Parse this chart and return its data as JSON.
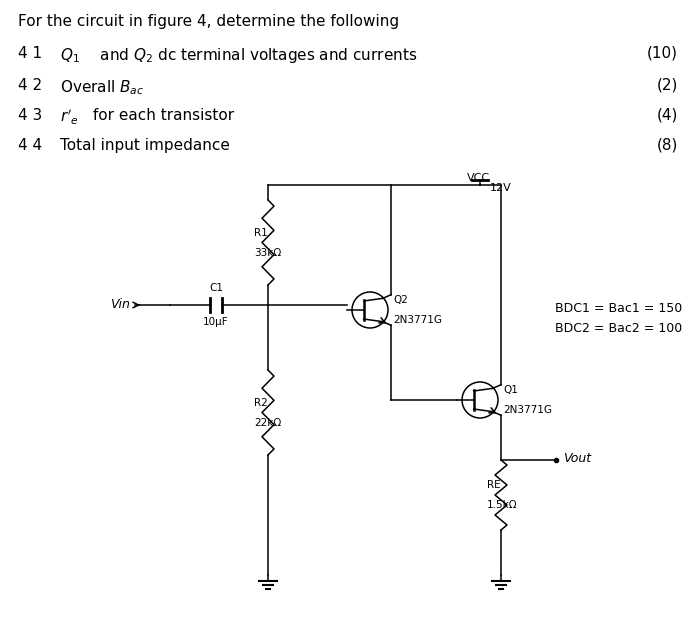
{
  "title_text": "For the circuit in figure 4, determine the following",
  "questions": [
    {
      "num": "4 1",
      "math": "$Q_1$",
      "text": " and $Q_2$ dc terminal voltages and currents",
      "mark": "(10)"
    },
    {
      "num": "4 2",
      "math": "Overall $B_{ac}$",
      "text": "",
      "mark": "(2)"
    },
    {
      "num": "4 3",
      "math": "$r'_e$",
      "text": " for each transistor",
      "mark": "(4)"
    },
    {
      "num": "4 4",
      "math": "",
      "text": "Total input impedance",
      "mark": "(8)"
    }
  ],
  "bg_color": "#ffffff",
  "text_color": "#000000",
  "vcc_label": "VCC",
  "vcc_voltage": "12V",
  "r1_label": "R1",
  "r1_value": "33kΩ",
  "r2_label": "R2",
  "r2_value": "22kΩ",
  "re_label": "RE",
  "re_value": "1.5kΩ",
  "c1_label": "C1",
  "c1_value": "10μF",
  "q1_label": "Q1",
  "q1_value": "2N3771G",
  "q2_label": "Q2",
  "q2_value": "2N3771G",
  "vin_label": "Vin",
  "vout_label": "Vout",
  "bdc1_text": "BDC1 = Bac1 = 150",
  "bdc2_text": "BDC2 = Bac2 = 100"
}
